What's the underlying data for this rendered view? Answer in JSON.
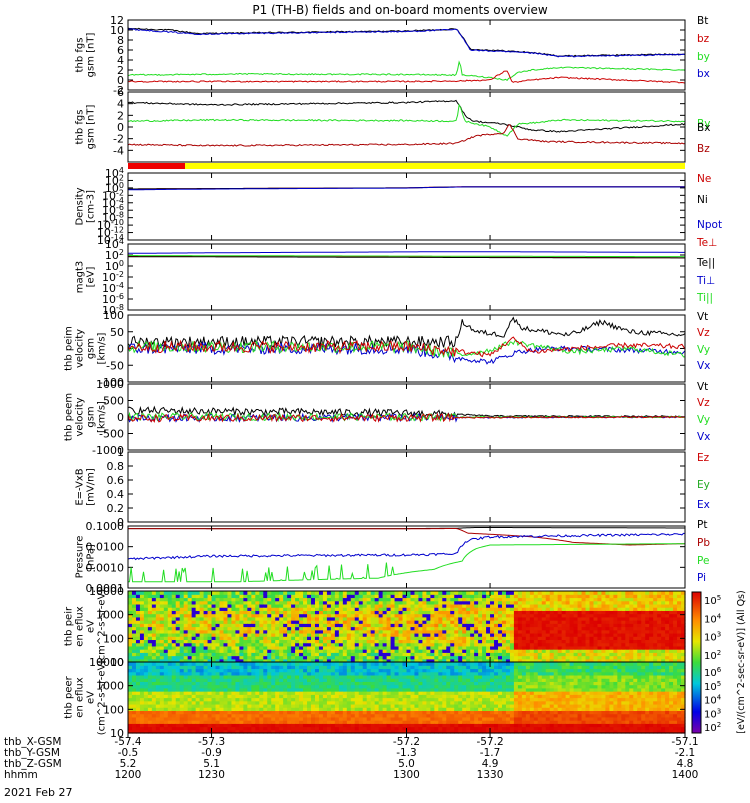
{
  "title": "P1 (TH-B) fields and on-board moments overview",
  "date_label": "2021 Feb 27",
  "ephemeris": {
    "rows": [
      {
        "label": "thb_X-GSM",
        "values": [
          "-57.4",
          "-57.3",
          "-57.2",
          "-57.2",
          "-57.1"
        ]
      },
      {
        "label": "thb_Y-GSM",
        "values": [
          "-0.5",
          "-0.9",
          "-1.3",
          "-1.7",
          "-2.1"
        ]
      },
      {
        "label": "thb_Z-GSM",
        "values": [
          "5.2",
          "5.1",
          "5.0",
          "4.9",
          "4.8"
        ]
      },
      {
        "label": "hhmm",
        "values": [
          "1200",
          "1230",
          "1300",
          "1330",
          "1400"
        ]
      }
    ],
    "tick_times": [
      1200,
      1230,
      1300,
      1330,
      1400
    ]
  },
  "colorbar": {
    "label": "[eV/(cm^2-sec-sr-eV)] (All Qs)",
    "upper_ticks": [
      "10^2",
      "10^3",
      "10^4",
      "10^5"
    ],
    "lower_ticks": [
      "10^2",
      "10^3",
      "10^4",
      "10^5",
      "10^6"
    ]
  },
  "colors": {
    "black": "#000000",
    "red": "#cc0000",
    "green": "#22dd22",
    "blue": "#0000cc",
    "yellow": "#ffff00",
    "dark_red": "#aa0000"
  },
  "chart_data": [
    {
      "type": "line",
      "ylabel": "thb fgs gsm [nT]",
      "ylim": [
        -2,
        12
      ],
      "yticks": [
        12,
        10,
        8,
        6,
        4,
        2,
        0,
        -2
      ],
      "legend": [
        "Bt",
        "bz",
        "by",
        "bx"
      ],
      "series": [
        {
          "name": "Bt",
          "color": "#000000",
          "points": [
            [
              1200,
              10.3
            ],
            [
              1215,
              10
            ],
            [
              1225,
              9.3
            ],
            [
              1240,
              9.4
            ],
            [
              1300,
              9.8
            ],
            [
              1318,
              10.2
            ],
            [
              1321,
              8
            ],
            [
              1323,
              6.1
            ],
            [
              1330,
              6
            ],
            [
              1345,
              5.5
            ],
            [
              1355,
              4.8
            ],
            [
              1400,
              5.2
            ]
          ]
        },
        {
          "name": "bx",
          "color": "#0000cc",
          "points": [
            [
              1200,
              10.2
            ],
            [
              1225,
              9.2
            ],
            [
              1300,
              9.7
            ],
            [
              1318,
              10.1
            ],
            [
              1321,
              7.8
            ],
            [
              1323,
              6
            ],
            [
              1345,
              5.4
            ],
            [
              1355,
              4.7
            ],
            [
              1400,
              5.1
            ]
          ]
        },
        {
          "name": "by",
          "color": "#22dd22",
          "points": [
            [
              1200,
              1
            ],
            [
              1240,
              1.2
            ],
            [
              1300,
              1.1
            ],
            [
              1318,
              1
            ],
            [
              1319,
              4
            ],
            [
              1320,
              1
            ],
            [
              1330,
              0.5
            ],
            [
              1336,
              0
            ],
            [
              1340,
              1.5
            ],
            [
              1345,
              2
            ],
            [
              1355,
              2.5
            ],
            [
              1400,
              2
            ]
          ]
        },
        {
          "name": "bz",
          "color": "#cc0000",
          "points": [
            [
              1200,
              -0.3
            ],
            [
              1300,
              -0.3
            ],
            [
              1318,
              -0.2
            ],
            [
              1330,
              0
            ],
            [
              1336,
              2
            ],
            [
              1338,
              -0.5
            ],
            [
              1345,
              0
            ],
            [
              1355,
              0.5
            ],
            [
              1400,
              -0.5
            ]
          ]
        }
      ]
    },
    {
      "type": "line",
      "ylabel": "thb fgs gsm [nT]",
      "ylim": [
        -6,
        6
      ],
      "yticks": [
        6,
        4,
        2,
        0,
        -2,
        -4
      ],
      "legend": [
        "By",
        "Bx",
        "Bz"
      ],
      "series": [
        {
          "name": "Bx",
          "color": "#000000",
          "points": [
            [
              1200,
              4.2
            ],
            [
              1230,
              3.8
            ],
            [
              1300,
              4.2
            ],
            [
              1318,
              4.5
            ],
            [
              1321,
              2
            ],
            [
              1324,
              1
            ],
            [
              1335,
              0.5
            ],
            [
              1345,
              -0.5
            ],
            [
              1355,
              -0.8
            ],
            [
              1400,
              0.5
            ]
          ]
        },
        {
          "name": "By",
          "color": "#22dd22",
          "points": [
            [
              1200,
              1
            ],
            [
              1230,
              1.2
            ],
            [
              1300,
              1.1
            ],
            [
              1318,
              1
            ],
            [
              1319,
              4
            ],
            [
              1321,
              1
            ],
            [
              1330,
              0
            ],
            [
              1336,
              -1.5
            ],
            [
              1340,
              0.5
            ],
            [
              1348,
              0.8
            ],
            [
              1355,
              1.2
            ],
            [
              1400,
              1
            ]
          ]
        },
        {
          "name": "Bz",
          "color": "#aa0000",
          "points": [
            [
              1200,
              -3
            ],
            [
              1230,
              -3.2
            ],
            [
              1300,
              -3
            ],
            [
              1318,
              -2.8
            ],
            [
              1325,
              -1.5
            ],
            [
              1335,
              -1
            ],
            [
              1337,
              0.5
            ],
            [
              1340,
              -2
            ],
            [
              1350,
              -2.5
            ],
            [
              1400,
              -2.8
            ]
          ]
        }
      ]
    },
    {
      "type": "line",
      "ylabel": "Density [cm-3]",
      "scale": "log",
      "ylim": [
        1e-14,
        10000.0
      ],
      "ytick_labels": [
        "10^4",
        "10^2",
        "10^0",
        "10^-2",
        "10^-4",
        "10^-6",
        "10^-8",
        "10^-10",
        "10^-12",
        "10^-14"
      ],
      "legend": [
        "Ne",
        "Ni",
        "Npot"
      ],
      "series": [
        {
          "name": "Ne",
          "color": "#cc0000",
          "points": [
            [
              1200,
              0.5
            ],
            [
              1300,
              1
            ],
            [
              1320,
              2
            ],
            [
              1400,
              2
            ]
          ]
        },
        {
          "name": "Ni",
          "color": "#000000",
          "points": [
            [
              1200,
              0.5
            ],
            [
              1300,
              1
            ],
            [
              1320,
              1.8
            ],
            [
              1400,
              1.8
            ]
          ]
        },
        {
          "name": "Npot",
          "color": "#0000cc",
          "points": [
            [
              1200,
              0.3
            ],
            [
              1300,
              0.9
            ],
            [
              1320,
              1.8
            ],
            [
              1400,
              1.8
            ]
          ]
        }
      ]
    },
    {
      "type": "line",
      "ylabel": "magt3 [eV]",
      "scale": "log",
      "ylim": [
        1e-08,
        10000.0
      ],
      "ytick_labels": [
        "10^4",
        "10^2",
        "10^0",
        "10^-2",
        "10^-4",
        "10^-6",
        "10^-8"
      ],
      "legend": [
        "Te⊥",
        "Te||",
        "Ti⊥",
        "Ti||"
      ],
      "series": [
        {
          "name": "Ti⊥",
          "color": "#0000cc",
          "points": [
            [
              1200,
              200
            ],
            [
              1320,
              400
            ],
            [
              1400,
              300
            ]
          ]
        },
        {
          "name": "Te⊥",
          "color": "#cc0000",
          "points": [
            [
              1200,
              60
            ],
            [
              1320,
              40
            ],
            [
              1400,
              30
            ]
          ]
        },
        {
          "name": "Te||",
          "color": "#000000",
          "points": [
            [
              1200,
              50
            ],
            [
              1320,
              35
            ],
            [
              1400,
              30
            ]
          ]
        },
        {
          "name": "Ti||",
          "color": "#22dd22",
          "points": [
            [
              1200,
              80
            ],
            [
              1320,
              60
            ],
            [
              1400,
              50
            ]
          ]
        }
      ]
    },
    {
      "type": "line",
      "ylabel": "thb peim velocity gsm [km/s]",
      "ylim": [
        -100,
        100
      ],
      "yticks": [
        100,
        50,
        0,
        -50,
        -100
      ],
      "legend": [
        "Vt",
        "Vz",
        "Vy",
        "Vx"
      ],
      "series": [
        {
          "name": "Vt",
          "color": "#000000",
          "points": [
            [
              1200,
              20
            ],
            [
              1300,
              20
            ],
            [
              1318,
              20
            ],
            [
              1320,
              80
            ],
            [
              1325,
              50
            ],
            [
              1335,
              40
            ],
            [
              1338,
              90
            ],
            [
              1342,
              60
            ],
            [
              1350,
              50
            ],
            [
              1358,
              40
            ],
            [
              1362,
              50
            ],
            [
              1370,
              80
            ],
            [
              1380,
              50
            ],
            [
              1400,
              40
            ]
          ]
        },
        {
          "name": "Vx",
          "color": "#0000cc",
          "points": [
            [
              1200,
              0
            ],
            [
              1300,
              0
            ],
            [
              1320,
              -30
            ],
            [
              1330,
              -40
            ],
            [
              1340,
              -10
            ],
            [
              1350,
              0
            ],
            [
              1360,
              0
            ],
            [
              1400,
              -10
            ]
          ]
        },
        {
          "name": "Vy",
          "color": "#22dd22",
          "points": [
            [
              1200,
              5
            ],
            [
              1300,
              5
            ],
            [
              1320,
              -20
            ],
            [
              1330,
              -5
            ],
            [
              1338,
              20
            ],
            [
              1345,
              10
            ],
            [
              1360,
              -10
            ],
            [
              1380,
              0
            ],
            [
              1400,
              -20
            ]
          ]
        },
        {
          "name": "Vz",
          "color": "#cc0000",
          "points": [
            [
              1200,
              5
            ],
            [
              1300,
              5
            ],
            [
              1320,
              -10
            ],
            [
              1330,
              -20
            ],
            [
              1338,
              30
            ],
            [
              1345,
              -10
            ],
            [
              1360,
              0
            ],
            [
              1380,
              10
            ],
            [
              1400,
              5
            ]
          ]
        }
      ]
    },
    {
      "type": "line",
      "ylabel": "thb peem velocity gsm [km/s]",
      "ylim": [
        -1000,
        1000
      ],
      "yticks": [
        1000,
        500,
        0,
        -500,
        -1000
      ],
      "legend": [
        "Vt",
        "Vz",
        "Vy",
        "Vx"
      ],
      "series": [
        {
          "name": "Vt",
          "color": "#000000",
          "points": [
            [
              1200,
              200
            ],
            [
              1300,
              120
            ],
            [
              1318,
              80
            ],
            [
              1330,
              30
            ],
            [
              1400,
              20
            ]
          ]
        },
        {
          "name": "Vx",
          "color": "#0000cc",
          "points": [
            [
              1200,
              -30
            ],
            [
              1300,
              -20
            ],
            [
              1400,
              0
            ]
          ]
        },
        {
          "name": "Vy",
          "color": "#22dd22",
          "points": [
            [
              1200,
              10
            ],
            [
              1300,
              0
            ],
            [
              1400,
              0
            ]
          ]
        },
        {
          "name": "Vz",
          "color": "#cc0000",
          "points": [
            [
              1200,
              -40
            ],
            [
              1300,
              -20
            ],
            [
              1400,
              0
            ]
          ]
        }
      ]
    },
    {
      "type": "line",
      "ylabel": "E=-VxB [mV/m]",
      "ylim": [
        0,
        1
      ],
      "yticks": [
        1.0,
        0.8,
        0.6,
        0.4,
        0.2,
        0.0
      ],
      "legend": [
        "Ez",
        "Ey",
        "Ex"
      ],
      "series": []
    },
    {
      "type": "line",
      "ylabel": "Pressure [nPa]",
      "scale": "log",
      "ylim": [
        0.0001,
        0.1
      ],
      "ytick_labels": [
        "0.1000",
        "0.0100",
        "0.0010",
        "0.0001"
      ],
      "legend": [
        "Pt",
        "Pb",
        "Pe",
        "Pi"
      ],
      "series": [
        {
          "name": "Pt",
          "color": "#000000",
          "points": [
            [
              1200,
              0.075
            ],
            [
              1300,
              0.075
            ],
            [
              1318,
              0.078
            ],
            [
              1325,
              0.085
            ],
            [
              1400,
              0.08
            ]
          ]
        },
        {
          "name": "Pb",
          "color": "#aa0000",
          "points": [
            [
              1200,
              0.075
            ],
            [
              1300,
              0.073
            ],
            [
              1318,
              0.076
            ],
            [
              1322,
              0.045
            ],
            [
              1345,
              0.03
            ],
            [
              1360,
              0.016
            ],
            [
              1380,
              0.012
            ],
            [
              1400,
              0.014
            ]
          ]
        },
        {
          "name": "Pi",
          "color": "#0000cc",
          "points": [
            [
              1200,
              0.0025
            ],
            [
              1230,
              0.0035
            ],
            [
              1300,
              0.004
            ],
            [
              1318,
              0.0045
            ],
            [
              1322,
              0.02
            ],
            [
              1330,
              0.03
            ],
            [
              1400,
              0.04
            ]
          ]
        },
        {
          "name": "Pe",
          "color": "#22dd22",
          "points": [
            [
              1200,
              0.0002
            ],
            [
              1240,
              0.0002
            ],
            [
              1290,
              0.0003
            ],
            [
              1310,
              0.0008
            ],
            [
              1320,
              0.002
            ],
            [
              1325,
              0.008
            ],
            [
              1330,
              0.012
            ],
            [
              1400,
              0.014
            ]
          ]
        }
      ]
    },
    {
      "type": "heatmap",
      "ylabel": "thb peir en eflux eV (cm^2-s-sr-eV)",
      "scale": "log",
      "ylim": [
        5,
        30000
      ],
      "ytick_labels": [
        "10000",
        "1000",
        "100",
        "10"
      ]
    },
    {
      "type": "heatmap",
      "ylabel": "thb peer en eflux eV (cm^2-s-sr-eV)",
      "scale": "log",
      "ylim": [
        5,
        30000
      ],
      "ytick_labels": [
        "10000",
        "1000",
        "100",
        "10"
      ]
    }
  ]
}
